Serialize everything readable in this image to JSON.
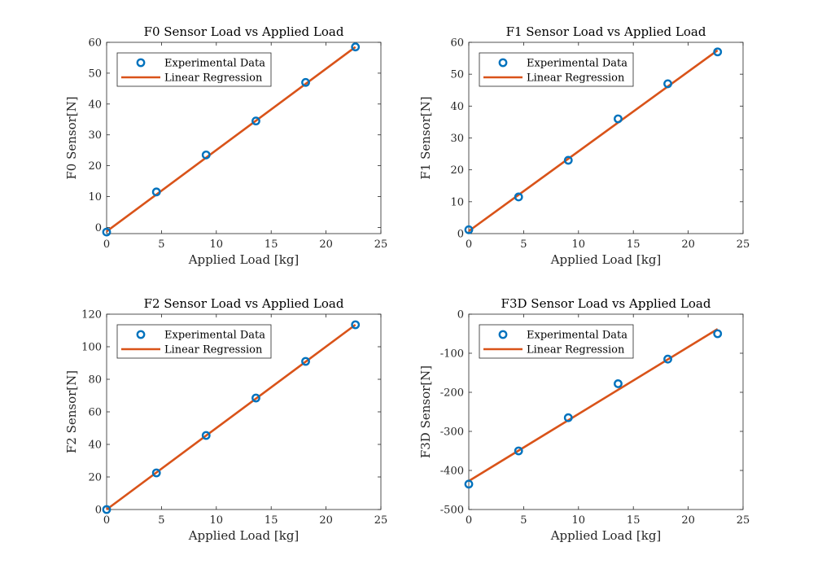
{
  "colors": {
    "data": "#0072BD",
    "fit": "#D95319",
    "axis": "#262626"
  },
  "chart_data": [
    {
      "type": "scatter",
      "title": "F0 Sensor Load vs Applied Load",
      "xlabel": "Applied Load [kg]",
      "ylabel": "F0 Sensor[N]",
      "xlim": [
        0,
        25
      ],
      "ylim": [
        -2,
        60
      ],
      "xticks": [
        0,
        5,
        10,
        15,
        20,
        25
      ],
      "yticks": [
        0,
        10,
        20,
        30,
        40,
        50,
        60
      ],
      "legend": "top-left",
      "series": [
        {
          "name": "Experimental Data",
          "type": "scatter",
          "x": [
            0,
            4.54,
            9.07,
            13.61,
            18.14,
            22.68
          ],
          "y": [
            -1.5,
            11.5,
            23.5,
            34.5,
            47.0,
            58.5
          ]
        },
        {
          "name": "Linear Regression",
          "type": "line",
          "x": [
            0,
            22.68
          ],
          "y": [
            -1.3,
            58.5
          ]
        }
      ]
    },
    {
      "type": "scatter",
      "title": "F1 Sensor Load vs Applied Load",
      "xlabel": "Applied Load [kg]",
      "ylabel": "F1 Sensor[N]",
      "xlim": [
        0,
        25
      ],
      "ylim": [
        0,
        60
      ],
      "xticks": [
        0,
        5,
        10,
        15,
        20,
        25
      ],
      "yticks": [
        0,
        10,
        20,
        30,
        40,
        50,
        60
      ],
      "legend": "top-left",
      "series": [
        {
          "name": "Experimental Data",
          "type": "scatter",
          "x": [
            0,
            4.54,
            9.07,
            13.61,
            18.14,
            22.68
          ],
          "y": [
            1.2,
            11.5,
            23.0,
            36.0,
            47.0,
            57.0
          ]
        },
        {
          "name": "Linear Regression",
          "type": "line",
          "x": [
            0,
            22.68
          ],
          "y": [
            0.8,
            57.5
          ]
        }
      ]
    },
    {
      "type": "scatter",
      "title": "F2 Sensor Load vs Applied Load",
      "xlabel": "Applied Load [kg]",
      "ylabel": "F2 Sensor[N]",
      "xlim": [
        0,
        25
      ],
      "ylim": [
        0,
        120
      ],
      "xticks": [
        0,
        5,
        10,
        15,
        20,
        25
      ],
      "yticks": [
        0,
        20,
        40,
        60,
        80,
        100,
        120
      ],
      "legend": "top-left",
      "series": [
        {
          "name": "Experimental Data",
          "type": "scatter",
          "x": [
            0,
            4.54,
            9.07,
            13.61,
            18.14,
            22.68
          ],
          "y": [
            0,
            22.5,
            45.5,
            68.5,
            91.0,
            113.5
          ]
        },
        {
          "name": "Linear Regression",
          "type": "line",
          "x": [
            0,
            22.68
          ],
          "y": [
            0,
            113.5
          ]
        }
      ]
    },
    {
      "type": "scatter",
      "title": "F3D Sensor Load vs Applied Load",
      "xlabel": "Applied Load [kg]",
      "ylabel": "F3D Sensor[N]",
      "xlim": [
        0,
        25
      ],
      "ylim": [
        -500,
        0
      ],
      "xticks": [
        0,
        5,
        10,
        15,
        20,
        25
      ],
      "yticks": [
        -500,
        -400,
        -300,
        -200,
        -100,
        0
      ],
      "legend": "top-left",
      "series": [
        {
          "name": "Experimental Data",
          "type": "scatter",
          "x": [
            0,
            4.54,
            9.07,
            13.61,
            18.14,
            22.68
          ],
          "y": [
            -435,
            -350,
            -265,
            -178,
            -115,
            -50
          ]
        },
        {
          "name": "Linear Regression",
          "type": "line",
          "x": [
            0,
            22.68
          ],
          "y": [
            -427,
            -38
          ]
        }
      ]
    }
  ]
}
